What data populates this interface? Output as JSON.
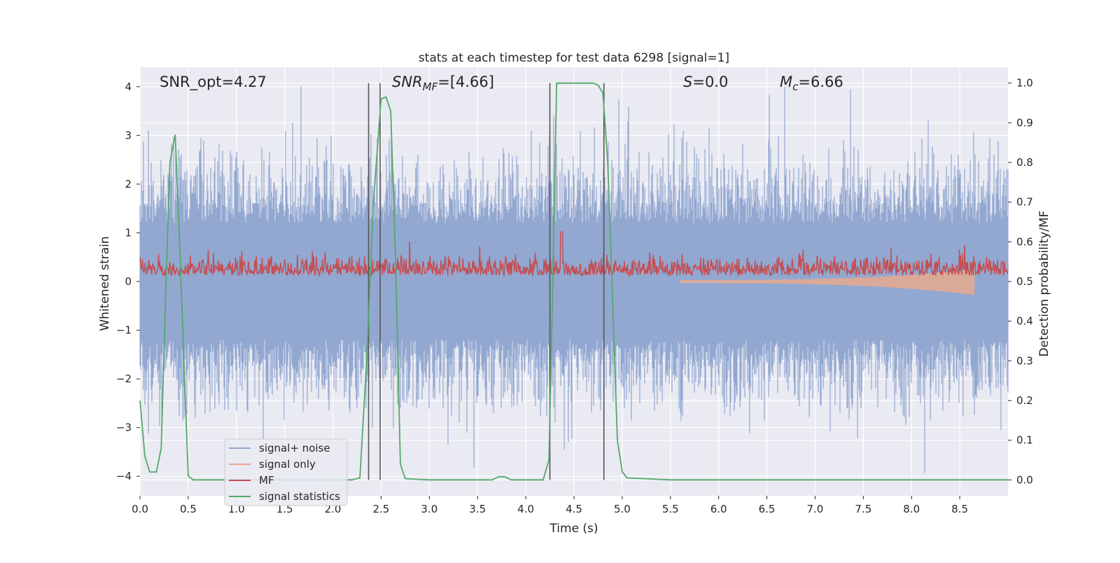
{
  "chart_data": {
    "type": "line",
    "title": "stats at each timestep for test data 6298 [signal=1]",
    "xlabel": "Time (s)",
    "ylabel_left": "Whitened strain",
    "ylabel_right": "Detection probability/MF",
    "xlim": [
      0,
      9.0
    ],
    "ylim_left": [
      -4.4,
      4.4
    ],
    "ylim_right": [
      -0.04,
      1.04
    ],
    "x_ticks": [
      "0.0",
      "0.5",
      "1.0",
      "1.5",
      "2.0",
      "2.5",
      "3.0",
      "3.5",
      "4.0",
      "4.5",
      "5.0",
      "5.5",
      "6.0",
      "6.5",
      "7.0",
      "7.5",
      "8.0",
      "8.5"
    ],
    "x_tick_values": [
      0,
      0.5,
      1.0,
      1.5,
      2.0,
      2.5,
      3.0,
      3.5,
      4.0,
      4.5,
      5.0,
      5.5,
      6.0,
      6.5,
      7.0,
      7.5,
      8.0,
      8.5
    ],
    "y_left_ticks": [
      "−4",
      "−3",
      "−2",
      "−1",
      "0",
      "1",
      "2",
      "3",
      "4"
    ],
    "y_left_tick_values": [
      -4,
      -3,
      -2,
      -1,
      0,
      1,
      2,
      3,
      4
    ],
    "y_right_ticks": [
      "0.0",
      "0.1",
      "0.2",
      "0.3",
      "0.4",
      "0.5",
      "0.6",
      "0.7",
      "0.8",
      "0.9",
      "1.0"
    ],
    "y_right_tick_values": [
      0,
      0.1,
      0.2,
      0.3,
      0.4,
      0.5,
      0.6,
      0.7,
      0.8,
      0.9,
      1.0
    ],
    "annotations": {
      "snr_opt": "SNR_opt=4.27",
      "snr_mf_main": "SNR",
      "snr_mf_sub": "MF",
      "snr_mf_rest": "=[4.66]",
      "s_main": "S",
      "s_rest": "=0.0",
      "mc_main": "M",
      "mc_sub": "c",
      "mc_rest": "=6.66"
    },
    "vertical_lines": [
      2.37,
      2.49,
      4.25,
      4.81
    ],
    "legend": {
      "position": "lower-left",
      "entries": [
        {
          "label": "signal+ noise",
          "color": "#92a8d1"
        },
        {
          "label": "signal only",
          "color": "#e8a98e"
        },
        {
          "label": "MF",
          "color": "#c44e52"
        },
        {
          "label": "signal statistics",
          "color": "#55a868"
        }
      ]
    },
    "series": [
      {
        "name": "signal statistics",
        "axis": "right",
        "color": "#55a868",
        "x": [
          0,
          0.05,
          0.1,
          0.17,
          0.22,
          0.27,
          0.31,
          0.365,
          0.41,
          0.47,
          0.5,
          0.55,
          1.0,
          1.5,
          2.0,
          2.2,
          2.28,
          2.35,
          2.42,
          2.5,
          2.55,
          2.6,
          2.65,
          2.7,
          2.75,
          3.0,
          3.5,
          3.65,
          3.72,
          3.78,
          3.85,
          3.9,
          4.0,
          4.18,
          4.24,
          4.28,
          4.32,
          4.4,
          4.5,
          4.7,
          4.75,
          4.8,
          4.85,
          4.9,
          4.95,
          5.0,
          5.05,
          5.5,
          6.0,
          7.0,
          8.0,
          9.0
        ],
        "values": [
          0.2,
          0.06,
          0.02,
          0.02,
          0.08,
          0.5,
          0.8,
          0.87,
          0.6,
          0.2,
          0.01,
          0.0,
          0.0,
          0.0,
          0.0,
          0.0,
          0.005,
          0.3,
          0.7,
          0.96,
          0.965,
          0.93,
          0.55,
          0.04,
          0.003,
          0.0,
          0.0,
          0.0,
          0.008,
          0.008,
          0.0,
          0.0,
          0.0,
          0.0,
          0.05,
          0.5,
          1.0,
          1.0,
          1.0,
          1.0,
          0.995,
          0.975,
          0.8,
          0.45,
          0.1,
          0.02,
          0.005,
          0.0,
          0.0,
          0.0,
          0.0,
          0.0
        ]
      }
    ]
  }
}
